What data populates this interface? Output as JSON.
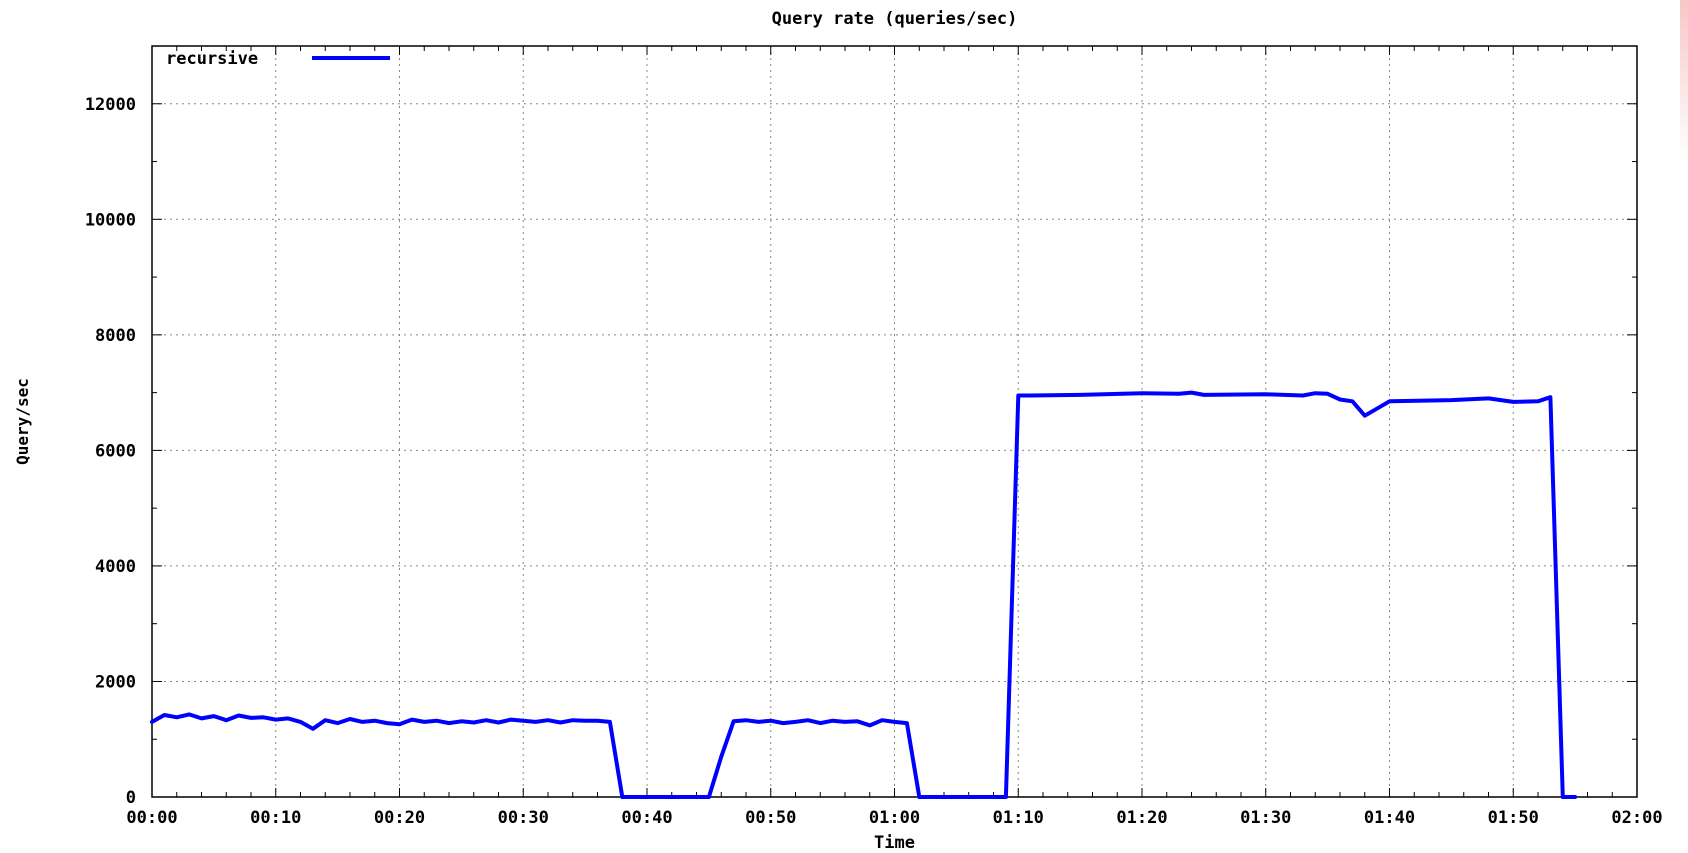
{
  "chart_data": {
    "type": "line",
    "title": "Query rate (queries/sec)",
    "xlabel": "Time",
    "ylabel": "Query/sec",
    "xlim": [
      "00:00",
      "02:00"
    ],
    "ylim": [
      0,
      13000
    ],
    "x_ticks": [
      "00:00",
      "00:10",
      "00:20",
      "00:30",
      "00:40",
      "00:50",
      "01:00",
      "01:10",
      "01:20",
      "01:30",
      "01:40",
      "01:50",
      "02:00"
    ],
    "y_ticks": [
      0,
      2000,
      4000,
      6000,
      8000,
      10000,
      12000
    ],
    "grid": true,
    "legend_position": "top-left",
    "colors": {
      "recursive": "#0000ff"
    },
    "series": [
      {
        "name": "recursive",
        "x": [
          "00:00",
          "00:01",
          "00:02",
          "00:03",
          "00:04",
          "00:05",
          "00:06",
          "00:07",
          "00:08",
          "00:09",
          "00:10",
          "00:11",
          "00:12",
          "00:13",
          "00:14",
          "00:15",
          "00:16",
          "00:17",
          "00:18",
          "00:19",
          "00:20",
          "00:21",
          "00:22",
          "00:23",
          "00:24",
          "00:25",
          "00:26",
          "00:27",
          "00:28",
          "00:29",
          "00:30",
          "00:31",
          "00:32",
          "00:33",
          "00:34",
          "00:35",
          "00:36",
          "00:37",
          "00:38",
          "00:40",
          "00:45",
          "00:46",
          "00:47",
          "00:48",
          "00:49",
          "00:50",
          "00:51",
          "00:52",
          "00:53",
          "00:54",
          "00:55",
          "00:56",
          "00:57",
          "00:58",
          "00:59",
          "01:00",
          "01:01",
          "01:02",
          "01:05",
          "01:09",
          "01:10",
          "01:11",
          "01:15",
          "01:20",
          "01:23",
          "01:24",
          "01:25",
          "01:30",
          "01:33",
          "01:34",
          "01:35",
          "01:36",
          "01:37",
          "01:38",
          "01:40",
          "01:45",
          "01:48",
          "01:50",
          "01:52",
          "01:53",
          "01:54",
          "01:55"
        ],
        "values": [
          1300,
          1420,
          1380,
          1430,
          1360,
          1400,
          1330,
          1410,
          1370,
          1380,
          1340,
          1360,
          1300,
          1180,
          1330,
          1280,
          1350,
          1300,
          1320,
          1280,
          1260,
          1340,
          1300,
          1320,
          1280,
          1310,
          1290,
          1330,
          1290,
          1340,
          1320,
          1300,
          1330,
          1290,
          1330,
          1320,
          1320,
          1300,
          0,
          0,
          0,
          700,
          1310,
          1330,
          1300,
          1320,
          1280,
          1300,
          1330,
          1280,
          1320,
          1300,
          1310,
          1240,
          1330,
          1300,
          1280,
          0,
          0,
          0,
          6950,
          6950,
          6960,
          6990,
          6980,
          7000,
          6960,
          6970,
          6950,
          6990,
          6980,
          6880,
          6850,
          6600,
          6850,
          6870,
          6900,
          6840,
          6850,
          6920,
          0,
          0
        ]
      }
    ]
  }
}
